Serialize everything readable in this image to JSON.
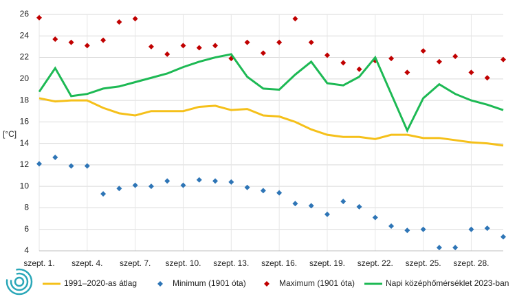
{
  "chart_data": {
    "type": "line",
    "ylabel": "[°C]",
    "categories": [
      "szept. 1.",
      null,
      null,
      "szept. 4.",
      null,
      null,
      "szept. 7.",
      null,
      null,
      "szept. 10.",
      null,
      null,
      "szept. 13.",
      null,
      null,
      "szept. 16.",
      null,
      null,
      "szept. 19.",
      null,
      null,
      "szept. 22.",
      null,
      null,
      "szept. 25.",
      null,
      null,
      "szept. 28.",
      null,
      null
    ],
    "ylim": [
      4,
      26
    ],
    "yticks": [
      4,
      6,
      8,
      10,
      12,
      14,
      16,
      18,
      20,
      22,
      24,
      26
    ],
    "grid": true,
    "legend": "bottom",
    "series": [
      {
        "name": "1991–2020-as átlag",
        "color": "#f5c01a",
        "style": "line",
        "values": [
          18.2,
          17.9,
          18.0,
          18.0,
          17.3,
          16.8,
          16.6,
          17.0,
          17.0,
          17.0,
          17.4,
          17.5,
          17.1,
          17.2,
          16.6,
          16.5,
          16.0,
          15.3,
          14.8,
          14.6,
          14.6,
          14.4,
          14.8,
          14.8,
          14.5,
          14.5,
          14.3,
          14.1,
          14.0,
          13.8
        ]
      },
      {
        "name": "Minimum (1901 óta)",
        "color": "#2e75b6",
        "style": "marker",
        "values": [
          12.1,
          12.7,
          11.9,
          11.9,
          9.3,
          9.8,
          10.1,
          10.0,
          10.5,
          10.1,
          10.6,
          10.5,
          10.4,
          9.9,
          9.6,
          9.4,
          8.4,
          8.2,
          7.4,
          8.6,
          8.1,
          7.1,
          6.3,
          5.9,
          6.0,
          4.3,
          4.3,
          6.0,
          6.1,
          5.3
        ]
      },
      {
        "name": "Maximum (1901 óta)",
        "color": "#c00000",
        "style": "marker",
        "values": [
          25.7,
          23.7,
          23.4,
          23.1,
          23.6,
          25.3,
          25.6,
          23.0,
          22.3,
          23.1,
          22.9,
          23.1,
          21.9,
          23.4,
          22.4,
          23.4,
          25.6,
          23.4,
          22.2,
          21.5,
          20.9,
          21.7,
          21.9,
          20.6,
          22.6,
          21.6,
          22.1,
          20.6,
          20.1,
          21.8
        ]
      },
      {
        "name": "Napi középhőmérséklet 2023-ban",
        "color": "#1db954",
        "style": "line",
        "values": [
          18.8,
          21.0,
          18.4,
          18.6,
          19.1,
          19.3,
          19.7,
          20.1,
          20.5,
          21.1,
          21.6,
          22.0,
          22.3,
          20.2,
          19.1,
          19.0,
          20.4,
          21.6,
          19.6,
          19.4,
          20.2,
          22.0,
          18.6,
          15.2,
          18.2,
          19.5,
          18.6,
          18.0,
          17.6,
          17.1
        ]
      }
    ]
  }
}
